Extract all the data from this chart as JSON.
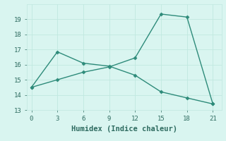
{
  "line1_x": [
    0,
    3,
    6,
    9,
    12,
    15,
    18,
    21
  ],
  "line1_y": [
    14.5,
    16.85,
    16.1,
    15.9,
    15.3,
    14.2,
    13.8,
    13.4
  ],
  "line2_x": [
    0,
    3,
    6,
    9,
    12,
    15,
    18,
    21
  ],
  "line2_y": [
    14.5,
    15.0,
    15.5,
    15.85,
    16.45,
    19.35,
    19.15,
    13.4
  ],
  "line_color": "#2e8b7a",
  "bg_color": "#d9f5f0",
  "grid_color": "#c0e8e0",
  "xlabel": "Humidex (Indice chaleur)",
  "xlim": [
    -0.5,
    22
  ],
  "ylim": [
    13,
    20
  ],
  "xticks": [
    0,
    3,
    6,
    9,
    12,
    15,
    18,
    21
  ],
  "yticks": [
    13,
    14,
    15,
    16,
    17,
    18,
    19
  ],
  "marker": "D",
  "markersize": 2.5,
  "linewidth": 1.0,
  "tick_fontsize": 6.5,
  "xlabel_fontsize": 7.5
}
